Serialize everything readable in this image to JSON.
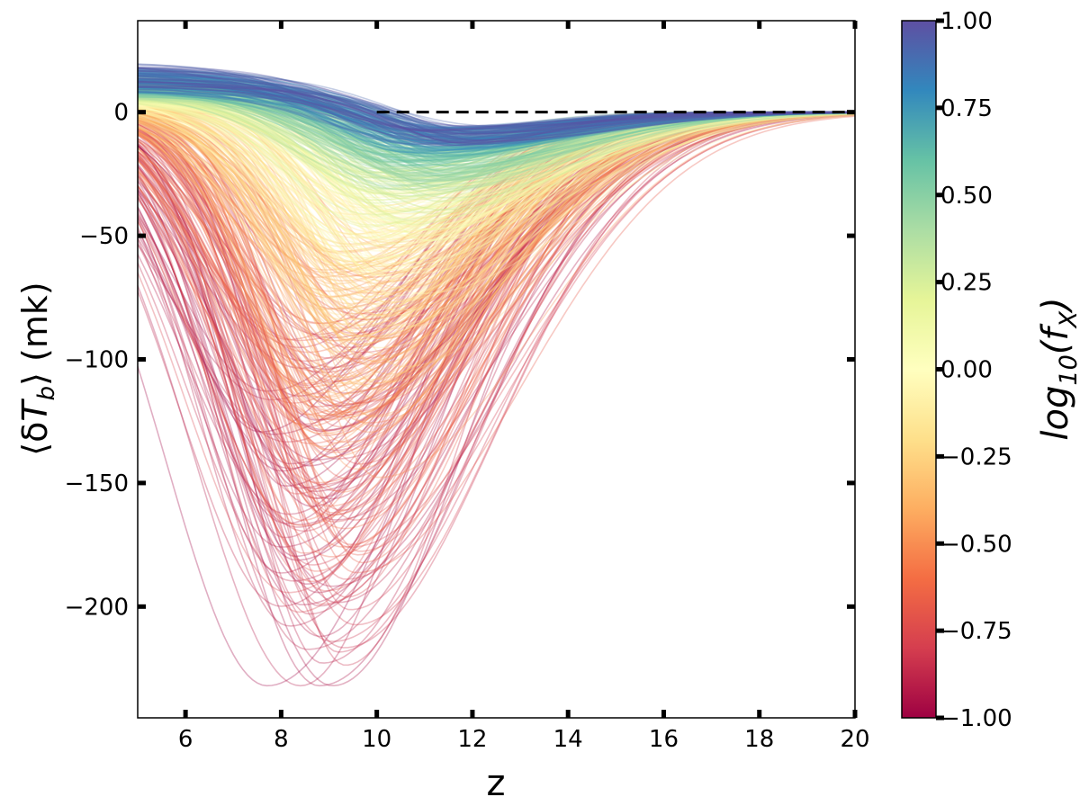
{
  "chart_data": {
    "type": "line",
    "description_counts": {
      "n_curves": 700
    },
    "xlabel": "z",
    "ylabel": "⟨δT_b⟩ (mk)",
    "xlim": [
      5,
      20
    ],
    "ylim": [
      -245,
      37
    ],
    "xticks": [
      6,
      8,
      10,
      12,
      14,
      16,
      18,
      20
    ],
    "xtick_labels": [
      "6",
      "8",
      "10",
      "12",
      "14",
      "16",
      "18",
      "20"
    ],
    "yticks": [
      0,
      -50,
      -100,
      -150,
      -200
    ],
    "ytick_labels": [
      "0",
      "−50",
      "−100",
      "−150",
      "−200"
    ],
    "reference_line": {
      "y": 0,
      "style": "dashed",
      "color": "#000000",
      "x_from": 10,
      "x_to": 20
    },
    "grid": false,
    "legend": "none",
    "colorbar": {
      "label": "log10(f_X)",
      "cmap": "Spectral",
      "vmin": -1.0,
      "vmax": 1.0,
      "ticks": [
        1.0,
        0.75,
        0.5,
        0.25,
        0.0,
        -0.25,
        -0.5,
        -0.75,
        -1.0
      ],
      "tick_labels": [
        "1.00",
        "0.75",
        "0.50",
        "0.25",
        "0.00",
        "−0.25",
        "−0.50",
        "−0.75",
        "−1.00"
      ],
      "stops": [
        "#9e0142",
        "#d53e4f",
        "#f46d43",
        "#fdae61",
        "#fee08b",
        "#ffffbf",
        "#e6f598",
        "#abdda4",
        "#66c2a5",
        "#3288bd",
        "#5e4fa2"
      ]
    },
    "ensemble": {
      "count": 700,
      "series_shape": "absorption trough: minimum at z≈8–12, amplitude between about −230 mK and −10 mK, emission up to ≈ +22 mK at low z for high f_X",
      "representative_curves": [
        {
          "log10_fX": -1.0,
          "z_min": 8.4,
          "depth_mK": -232
        },
        {
          "log10_fX": -0.75,
          "z_min": 8.8,
          "depth_mK": -185
        },
        {
          "log10_fX": -0.5,
          "z_min": 9.6,
          "depth_mK": -130
        },
        {
          "log10_fX": -0.25,
          "z_min": 10.2,
          "depth_mK": -95
        },
        {
          "log10_fX": 0.0,
          "z_min": 10.5,
          "depth_mK": -70
        },
        {
          "log10_fX": 0.25,
          "z_min": 10.9,
          "depth_mK": -45
        },
        {
          "log10_fX": 0.5,
          "z_min": 11.2,
          "depth_mK": -30
        },
        {
          "log10_fX": 0.75,
          "z_min": 11.5,
          "depth_mK": -18
        },
        {
          "log10_fX": 1.0,
          "z_min": 11.8,
          "depth_mK": -10
        }
      ]
    }
  }
}
